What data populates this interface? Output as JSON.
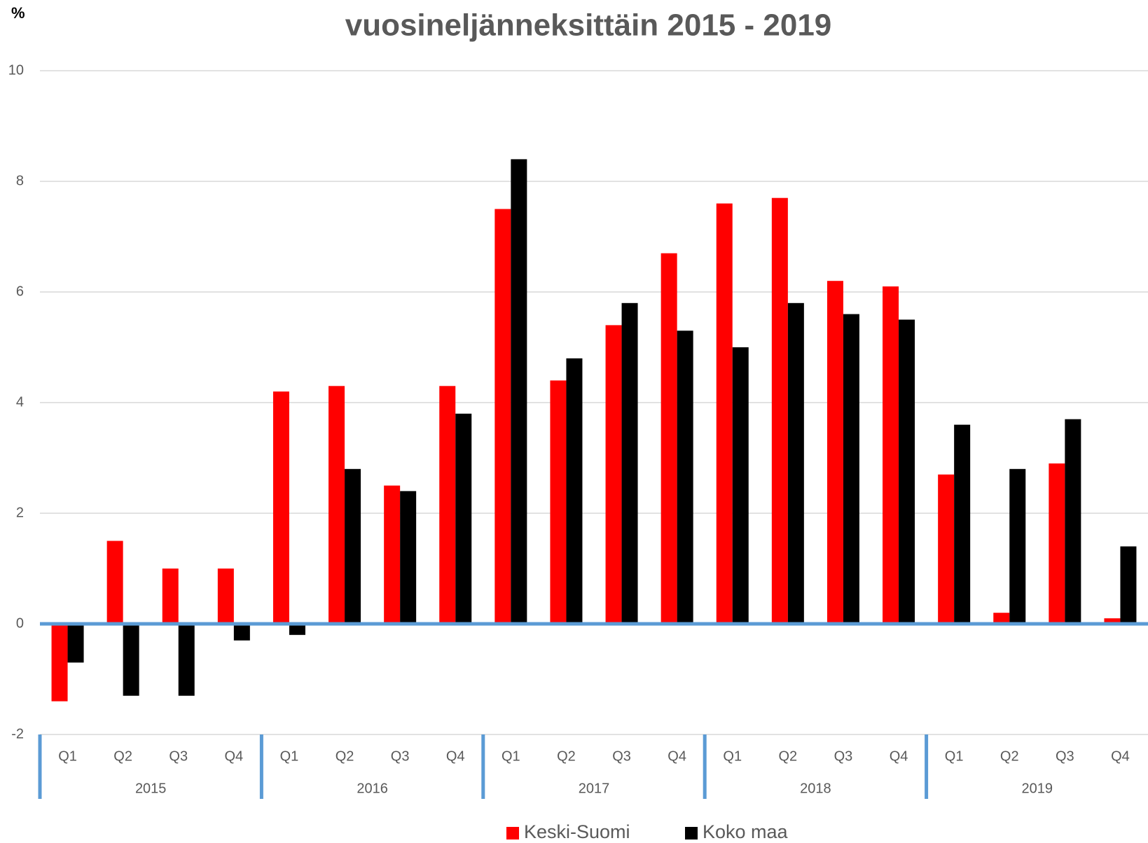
{
  "chart_data": {
    "type": "bar",
    "title": "vuosineljänneksittäin 2015 - 2019",
    "y_label": "%",
    "categories": [
      "Q1",
      "Q2",
      "Q3",
      "Q4",
      "Q1",
      "Q2",
      "Q3",
      "Q4",
      "Q1",
      "Q2",
      "Q3",
      "Q4",
      "Q1",
      "Q2",
      "Q3",
      "Q4",
      "Q1",
      "Q2",
      "Q3",
      "Q4"
    ],
    "groups": [
      "2015",
      "2016",
      "2017",
      "2018",
      "2019"
    ],
    "series": [
      {
        "name": "Keski-Suomi",
        "color": "#ff0000",
        "values": [
          -1.4,
          1.5,
          1.0,
          1.0,
          4.2,
          4.3,
          2.5,
          4.3,
          7.5,
          4.4,
          5.4,
          6.7,
          7.6,
          7.7,
          6.2,
          6.1,
          2.7,
          0.2,
          2.9,
          0.1
        ]
      },
      {
        "name": "Koko maa",
        "color": "#000000",
        "values": [
          -0.7,
          -1.3,
          -1.3,
          -0.3,
          -0.2,
          2.8,
          2.4,
          3.8,
          8.4,
          4.8,
          5.8,
          5.3,
          5.0,
          5.8,
          5.6,
          5.5,
          3.6,
          2.8,
          3.7,
          1.4
        ]
      }
    ],
    "ylim": [
      -2,
      10
    ],
    "yticks": [
      -2,
      0,
      2,
      4,
      6,
      8,
      10
    ],
    "grid": true,
    "legend": "bottom"
  }
}
